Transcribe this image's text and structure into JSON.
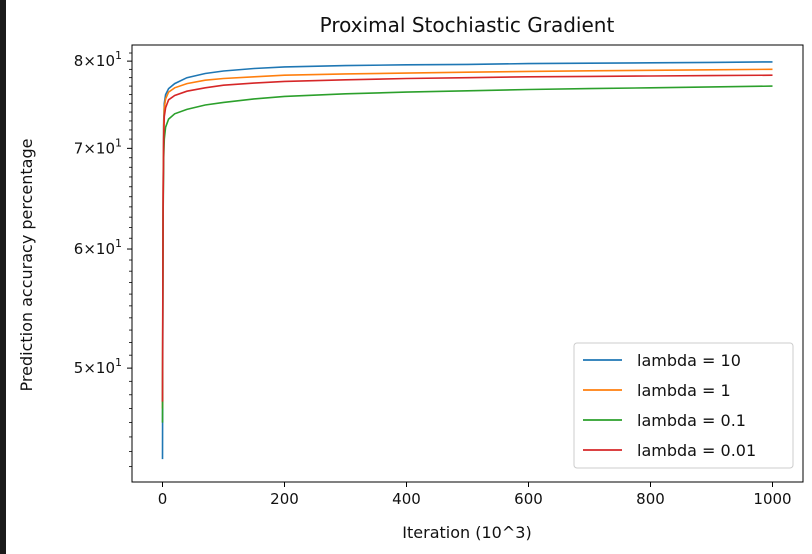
{
  "chart_data": {
    "type": "line",
    "title": "Proximal Stochiastic Gradient",
    "xlabel": "Iteration (10^3)",
    "ylabel": "Prediction accuracy percentage",
    "yscale": "log",
    "xlim": [
      -50,
      1050
    ],
    "ylim": [
      42,
      82
    ],
    "x_ticks": [
      0,
      200,
      400,
      600,
      800,
      1000
    ],
    "x_tick_labels": [
      "0",
      "200",
      "400",
      "600",
      "800",
      "1000"
    ],
    "y_ticks": [
      50,
      60,
      70,
      80
    ],
    "y_tick_labels": [
      {
        "base": "5",
        "exp": "1"
      },
      {
        "base": "6",
        "exp": "1"
      },
      {
        "base": "7",
        "exp": "1"
      },
      {
        "base": "8",
        "exp": "1"
      }
    ],
    "grid": false,
    "legend_position": "bottom-right",
    "x": [
      0,
      1,
      2,
      3,
      5,
      10,
      20,
      40,
      70,
      100,
      150,
      200,
      300,
      400,
      500,
      600,
      700,
      800,
      900,
      1000
    ],
    "series": [
      {
        "name": "lambda = 10",
        "color": "#1f77b4",
        "values": [
          43.5,
          65,
          73,
          75,
          76,
          76.7,
          77.3,
          78,
          78.5,
          78.8,
          79.1,
          79.3,
          79.45,
          79.55,
          79.6,
          79.7,
          79.75,
          79.8,
          79.85,
          79.9
        ]
      },
      {
        "name": "lambda = 1",
        "color": "#ff7f0e",
        "values": [
          47,
          66,
          72.5,
          74.5,
          75.5,
          76.3,
          76.8,
          77.3,
          77.7,
          77.9,
          78.1,
          78.3,
          78.45,
          78.55,
          78.65,
          78.75,
          78.82,
          78.88,
          78.94,
          79.0
        ]
      },
      {
        "name": "lambda = 0.1",
        "color": "#2ca02c",
        "values": [
          46,
          63,
          69,
          71,
          72.3,
          73.2,
          73.8,
          74.3,
          74.8,
          75.1,
          75.5,
          75.8,
          76.1,
          76.3,
          76.45,
          76.6,
          76.7,
          76.8,
          76.9,
          77.0
        ]
      },
      {
        "name": "lambda = 0.01",
        "color": "#d62728",
        "values": [
          47.5,
          64,
          71,
          73.5,
          74.5,
          75.4,
          75.9,
          76.4,
          76.8,
          77.1,
          77.35,
          77.55,
          77.75,
          77.9,
          78.0,
          78.1,
          78.15,
          78.2,
          78.25,
          78.3
        ]
      }
    ]
  }
}
